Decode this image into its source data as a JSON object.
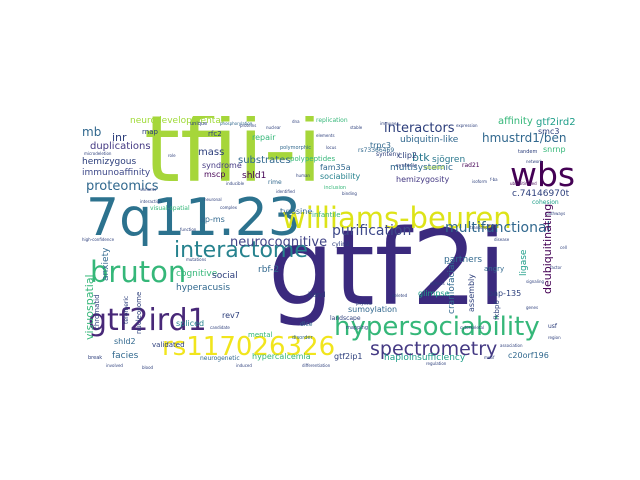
{
  "colors": {
    "background": "#ffffff",
    "lime": "#a6d63a",
    "green": "#35b779",
    "teal": "#1f9e89",
    "blue": "#31688e",
    "indigo": "#443983",
    "purple": "#440154",
    "yellow": "#e6e419"
  },
  "words": {
    "gtf2i": "gtf2i",
    "tfii_i": "tfii-i",
    "q1123": "7q11.23",
    "williams_beuren": "williams-beuren",
    "wbs": "wbs",
    "interactome": "interactome",
    "bruton": "bruton",
    "gtf2ird1": "gtf2ird1",
    "hypersociability": "hypersociability",
    "rs117026326": "rs117026326",
    "spectrometry": "spectrometry",
    "purification": "purification",
    "multifunctional": "multifunctional",
    "neurocognitive": "neurocognitive",
    "proteomics": "proteomics",
    "interactors": "interactors",
    "hmustrd1_ben": "hmustrd1/ben",
    "affinity": "affinity",
    "gtf2ird2": "gtf2ird2",
    "btk": "btk",
    "sjogren": "sjögren",
    "smc3": "smc3",
    "snrnp": "snrnp",
    "mb": "mb",
    "inr": "inr",
    "duplications": "duplications",
    "neurodevelopmental": "neurodevelopmental",
    "hemizygous": "hemizygous",
    "immunoaffinity": "immunoaffinity",
    "syndrome": "syndrome",
    "mscp": "mscp",
    "substrates": "substrates",
    "mass": "mass",
    "shld1": "shld1",
    "shld2": "shld2",
    "fam35a": "fam35a",
    "sociability": "sociability",
    "multisystemic": "multisystemic",
    "hemizygosity": "hemizygosity",
    "clip2": "clip2",
    "trpc3": "trpc3",
    "rad21": "rad21",
    "ubiquitin_like": "ubiquitin-like",
    "c74146970t": "c.74146970t",
    "cohesion": "cohesion",
    "ap_ms": "ap-ms",
    "cognitive": "cognitive",
    "hyperacusis": "hyperacusis",
    "social": "social",
    "rbf2": "rbf-2",
    "partners": "partners",
    "bap135": "bap-135",
    "deubiquitinating": "deubiquitinating",
    "ligase": "ligase",
    "craniofacial": "craniofacial",
    "angry": "angry",
    "glimpse": "glimpse",
    "assembly": "assembly",
    "fkbp6": "fkbp6",
    "visuospatial": "visuospatial",
    "anxiety": "anxiety",
    "chromatid": "chromatid",
    "nucleosome": "nucleosome",
    "telomeric": "telomeric",
    "facies": "facies",
    "spliced": "spliced",
    "rev7": "rev7",
    "mental": "mental",
    "hypercalcemia": "hypercalcemia",
    "gtf2ip1": "gtf2ip1",
    "haploinsufficiency": "haploinsufficiency",
    "c20orf196": "c20orf196",
    "sumoylation": "sumoylation",
    "landscape": "landscape",
    "dice": "dice",
    "band": "band",
    "validated": "validated",
    "neurogenetic": "neurogenetic",
    "tyrosine": "tyrosine",
    "infantile": "infantile",
    "rfc2": "rfc2",
    "repair": "repair",
    "rnap": "rnap",
    "polypeptides": "polypeptides",
    "synteny": "synteny",
    "replication": "replication",
    "rs73366469": "rs73366469",
    "coupled": "coupled",
    "cylin2": "cylin2",
    "usf": "usf",
    "disorder": "disorder",
    "visual_spatial": "visual-spatial",
    "rime": "rime",
    "mapping": "mapping",
    "unique": "unique",
    "syntenic": "syntenic",
    "polymorphic": "polymorphic",
    "tandem": "tandem",
    "inclusion": "inclusion",
    "break": "break",
    "stable": "stable",
    "phosphorylation": "phosphorylation",
    "f_ba": "f-ba",
    "blood": "blood",
    "complex": "complex",
    "mutations": "mutations",
    "physical": "physical",
    "cell": "cell",
    "cytoskeletal": "cytoskeletal",
    "differentiation": "differentiation",
    "binding": "binding",
    "expression": "expression",
    "isoform": "isoform",
    "network": "network",
    "factor": "factor",
    "genes": "genes",
    "region": "region",
    "microdeletion": "microdeletion",
    "ubiquitinated": "ubiquitinated",
    "proteins": "proteins",
    "transcription": "transcription",
    "deleted": "deleted",
    "inducible": "inducible",
    "regulation": "regulation",
    "association": "association",
    "identified": "identified",
    "variants": "variants",
    "human": "human",
    "immune": "immune",
    "role": "role",
    "defects": "defects",
    "pathways": "pathways",
    "induced": "induced",
    "dna": "dna",
    "signaling": "signaling",
    "function": "function",
    "involved": "involved",
    "nuclear": "nuclear",
    "interaction": "interaction",
    "candidate": "candidate",
    "disease": "disease",
    "motif": "motif",
    "high_confidence": "high-confidence",
    "neuronal": "neuronal",
    "elements": "elements",
    "locus": "locus"
  }
}
